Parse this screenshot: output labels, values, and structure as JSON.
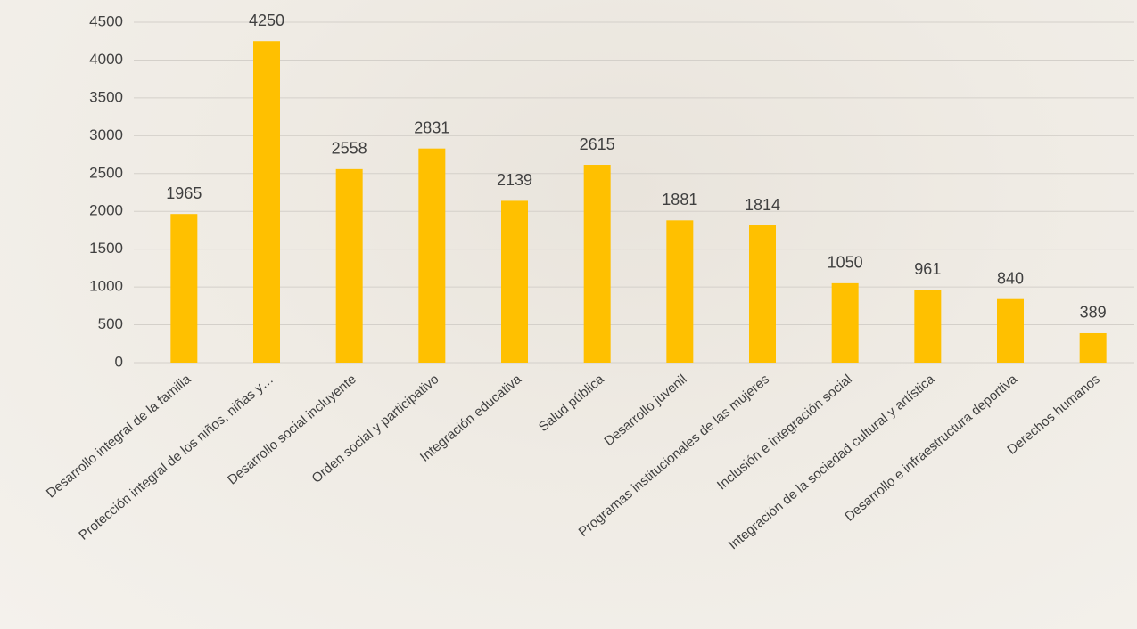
{
  "chart_data": {
    "type": "bar",
    "categories": [
      "Desarrollo integral de la familia",
      "Protección integral de los niños, niñas y…",
      "Desarrollo social incluyente",
      "Orden social y participativo",
      "Integración educativa",
      "Salud pública",
      "Desarrollo juvenil",
      "Programas institucionales de las mujeres",
      "Inclusión e integración social",
      "Integración de la sociedad cultural y artística",
      "Desarrollo e infraestructura deportiva",
      "Derechos humanos"
    ],
    "values": [
      1965,
      4250,
      2558,
      2831,
      2139,
      2615,
      1881,
      1814,
      1050,
      961,
      840,
      389
    ],
    "color": "#ffc000",
    "ylim": [
      0,
      4500
    ],
    "yticks": [
      0,
      500,
      1000,
      1500,
      2000,
      2500,
      3000,
      3500,
      4000,
      4500
    ],
    "grid": true
  }
}
